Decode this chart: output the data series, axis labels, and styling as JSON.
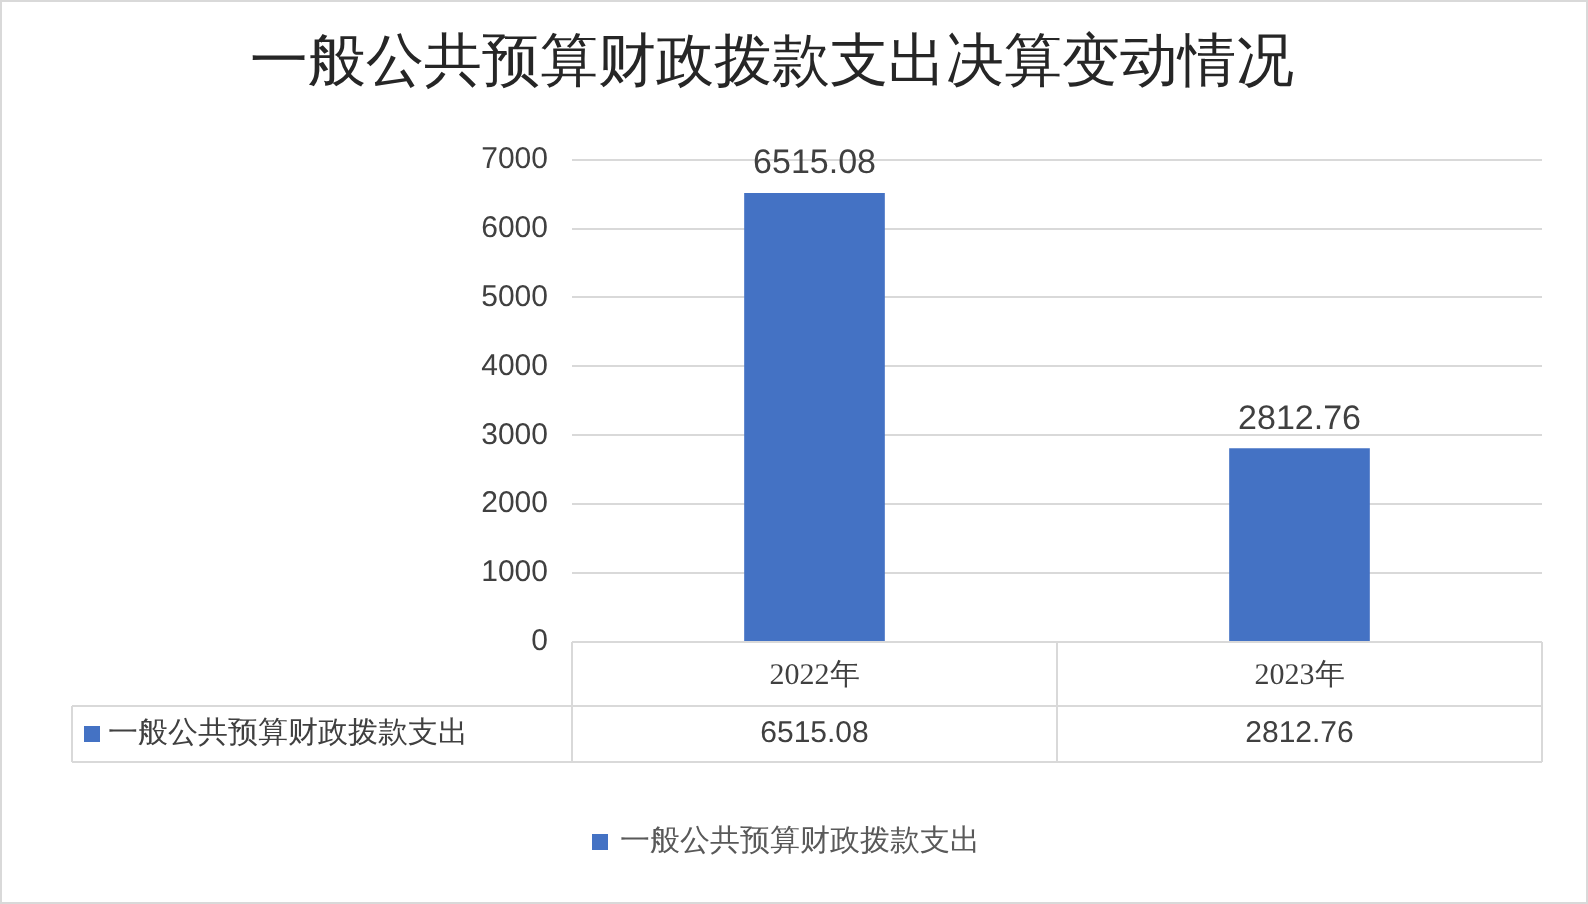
{
  "chart_data": {
    "type": "bar",
    "title": "一般公共预算财政拨款支出决算变动情况",
    "categories": [
      "2022年",
      "2023年"
    ],
    "series": [
      {
        "name": "一般公共预算财政拨款支出",
        "color": "#4472c4",
        "values": [
          6515.08,
          2812.76
        ]
      }
    ],
    "annotations": [
      "6515.08",
      "2812.76"
    ],
    "ylim": [
      0,
      7000
    ],
    "yticks": [
      0,
      1000,
      2000,
      3000,
      4000,
      5000,
      6000,
      7000
    ],
    "grid": "y",
    "legend": "bottom",
    "data_labels": true
  }
}
